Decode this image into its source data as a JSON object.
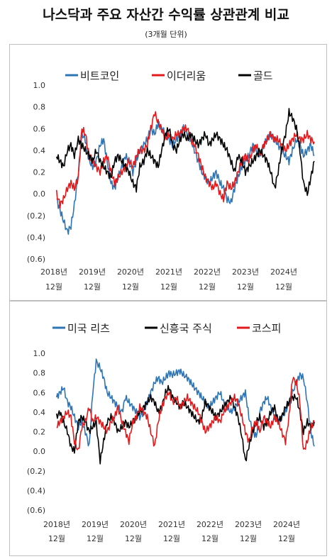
{
  "header": {
    "title": "나스닥과 주요 자산간 수익률 상관관계 비교",
    "subtitle": "(3개월 단위)"
  },
  "chart_data": [
    {
      "type": "line",
      "title": "",
      "legend_position": "top",
      "ylim": [
        -0.6,
        1.0
      ],
      "yticks": [
        "1.0",
        "0.8",
        "0.6",
        "0.4",
        "0.2",
        "0.0",
        "(0.2)",
        "(0.4)",
        "(0.6)"
      ],
      "xticks": [
        {
          "year": "2018년",
          "month": "12월"
        },
        {
          "year": "2019년",
          "month": "12월"
        },
        {
          "year": "2020년",
          "month": "12월"
        },
        {
          "year": "2021년",
          "month": "12월"
        },
        {
          "year": "2022년",
          "month": "12월"
        },
        {
          "year": "2023년",
          "month": "12월"
        },
        {
          "year": "2024년",
          "month": "12월"
        }
      ],
      "x": [
        2018.92,
        2019.0,
        2019.08,
        2019.17,
        2019.25,
        2019.33,
        2019.42,
        2019.5,
        2019.58,
        2019.67,
        2019.75,
        2019.83,
        2019.92,
        2020.0,
        2020.08,
        2020.17,
        2020.25,
        2020.33,
        2020.42,
        2020.5,
        2020.58,
        2020.67,
        2020.75,
        2020.83,
        2020.92,
        2021.0,
        2021.08,
        2021.17,
        2021.25,
        2021.33,
        2021.42,
        2021.5,
        2021.58,
        2021.67,
        2021.75,
        2021.83,
        2021.92,
        2022.0,
        2022.08,
        2022.17,
        2022.25,
        2022.33,
        2022.42,
        2022.5,
        2022.58,
        2022.67,
        2022.75,
        2022.83,
        2022.92,
        2023.0,
        2023.08,
        2023.17,
        2023.25,
        2023.33,
        2023.42,
        2023.5,
        2023.58,
        2023.67,
        2023.75,
        2023.83,
        2023.92,
        2024.0,
        2024.08,
        2024.17,
        2024.25,
        2024.33,
        2024.42,
        2024.5,
        2024.58,
        2024.67,
        2024.75,
        2024.83
      ],
      "series": [
        {
          "name": "비트코인",
          "color": "#2e75b6",
          "values": [
            -0.05,
            -0.15,
            -0.25,
            -0.35,
            -0.3,
            -0.1,
            0.2,
            0.55,
            0.5,
            0.3,
            0.25,
            0.3,
            0.45,
            0.5,
            0.3,
            0.1,
            0.05,
            0.15,
            0.25,
            0.35,
            0.3,
            0.2,
            0.3,
            0.4,
            0.45,
            0.5,
            0.6,
            0.55,
            0.65,
            0.6,
            0.55,
            0.5,
            0.45,
            0.5,
            0.55,
            0.6,
            0.55,
            0.5,
            0.4,
            0.3,
            0.2,
            0.15,
            0.1,
            0.15,
            0.2,
            0.1,
            0.05,
            -0.05,
            -0.08,
            0.05,
            0.15,
            0.25,
            0.3,
            0.35,
            0.45,
            0.4,
            0.35,
            0.45,
            0.5,
            0.55,
            0.5,
            0.45,
            0.4,
            0.35,
            0.3,
            0.4,
            0.5,
            0.45,
            0.35,
            0.4,
            0.45,
            0.35
          ]
        },
        {
          "name": "이더리움",
          "color": "#e31a1c",
          "values": [
            0.0,
            -0.1,
            -0.05,
            0.05,
            0.1,
            0.05,
            0.15,
            0.6,
            0.55,
            0.35,
            0.3,
            0.25,
            0.2,
            0.3,
            0.35,
            0.2,
            0.1,
            0.15,
            0.2,
            0.25,
            0.3,
            0.25,
            0.35,
            0.4,
            0.4,
            0.45,
            0.6,
            0.75,
            0.65,
            0.6,
            0.5,
            0.55,
            0.5,
            0.55,
            0.55,
            0.6,
            0.6,
            0.5,
            0.45,
            0.35,
            0.25,
            0.15,
            0.1,
            0.05,
            0.1,
            0.0,
            -0.05,
            0.1,
            0.05,
            0.1,
            0.2,
            0.3,
            0.35,
            0.3,
            0.4,
            0.45,
            0.35,
            0.45,
            0.5,
            0.55,
            0.5,
            0.5,
            0.45,
            0.4,
            0.45,
            0.5,
            0.55,
            0.5,
            0.5,
            0.55,
            0.5,
            0.48
          ]
        },
        {
          "name": "골드",
          "color": "#000000",
          "values": [
            0.35,
            0.3,
            0.25,
            0.4,
            0.45,
            0.35,
            0.5,
            0.45,
            0.4,
            0.35,
            0.3,
            0.4,
            0.3,
            0.25,
            0.2,
            0.15,
            0.3,
            0.35,
            0.3,
            0.25,
            0.2,
            0.1,
            0.05,
            0.25,
            0.3,
            0.4,
            0.35,
            0.3,
            0.25,
            0.4,
            0.55,
            0.6,
            0.45,
            0.4,
            0.5,
            0.55,
            0.5,
            0.55,
            0.5,
            0.45,
            0.5,
            0.55,
            0.45,
            0.5,
            0.55,
            0.5,
            0.45,
            0.4,
            0.3,
            0.2,
            0.35,
            0.3,
            0.2,
            0.25,
            0.3,
            0.35,
            0.4,
            0.35,
            0.3,
            0.2,
            0.05,
            0.2,
            0.4,
            0.55,
            0.75,
            0.7,
            0.6,
            0.4,
            0.1,
            0.0,
            0.15,
            0.3
          ]
        }
      ]
    },
    {
      "type": "line",
      "title": "",
      "legend_position": "top",
      "ylim": [
        -0.6,
        1.0
      ],
      "yticks": [
        "1.0",
        "0.8",
        "0.6",
        "0.4",
        "0.2",
        "0.0",
        "(0.2)",
        "(0.4)",
        "(0.6)"
      ],
      "xticks": [
        {
          "year": "2018년",
          "month": "12월"
        },
        {
          "year": "2019년",
          "month": "12월"
        },
        {
          "year": "2020년",
          "month": "12월"
        },
        {
          "year": "2021년",
          "month": "12월"
        },
        {
          "year": "2022년",
          "month": "12월"
        },
        {
          "year": "2023년",
          "month": "12월"
        },
        {
          "year": "2024년",
          "month": "12월"
        }
      ],
      "x": [
        2018.92,
        2019.0,
        2019.08,
        2019.17,
        2019.25,
        2019.33,
        2019.42,
        2019.5,
        2019.58,
        2019.67,
        2019.75,
        2019.83,
        2019.92,
        2020.0,
        2020.08,
        2020.17,
        2020.25,
        2020.33,
        2020.42,
        2020.5,
        2020.58,
        2020.67,
        2020.75,
        2020.83,
        2020.92,
        2021.0,
        2021.08,
        2021.17,
        2021.25,
        2021.33,
        2021.42,
        2021.5,
        2021.58,
        2021.67,
        2021.75,
        2021.83,
        2021.92,
        2022.0,
        2022.08,
        2022.17,
        2022.25,
        2022.33,
        2022.42,
        2022.5,
        2022.58,
        2022.67,
        2022.75,
        2022.83,
        2022.92,
        2023.0,
        2023.08,
        2023.17,
        2023.25,
        2023.33,
        2023.42,
        2023.5,
        2023.58,
        2023.67,
        2023.75,
        2023.83,
        2023.92,
        2024.0,
        2024.08,
        2024.17,
        2024.25,
        2024.33,
        2024.42,
        2024.5,
        2024.58,
        2024.67,
        2024.75,
        2024.83
      ],
      "series": [
        {
          "name": "미국 리츠",
          "color": "#2e75b6",
          "values": [
            0.55,
            0.6,
            0.65,
            0.5,
            0.45,
            0.35,
            0.25,
            0.3,
            0.2,
            0.05,
            0.6,
            0.92,
            0.85,
            0.75,
            0.6,
            0.55,
            0.5,
            0.45,
            0.4,
            0.55,
            0.5,
            0.45,
            0.4,
            0.35,
            0.4,
            0.5,
            0.6,
            0.7,
            0.75,
            0.7,
            0.75,
            0.8,
            0.78,
            0.8,
            0.82,
            0.78,
            0.75,
            0.7,
            0.65,
            0.6,
            0.55,
            0.5,
            0.45,
            0.5,
            0.55,
            0.6,
            0.5,
            0.45,
            0.4,
            0.45,
            0.5,
            0.55,
            0.6,
            0.35,
            0.2,
            0.15,
            0.4,
            0.5,
            0.55,
            0.45,
            0.35,
            0.3,
            0.35,
            0.4,
            0.5,
            0.6,
            0.7,
            0.78,
            0.75,
            0.5,
            0.2,
            0.05
          ]
        },
        {
          "name": "신흥국 주식",
          "color": "#000000",
          "values": [
            0.35,
            0.4,
            0.3,
            0.2,
            0.05,
            0.0,
            0.3,
            0.35,
            0.3,
            0.2,
            0.25,
            0.3,
            -0.1,
            0.1,
            0.3,
            0.35,
            0.3,
            0.2,
            0.25,
            0.3,
            0.25,
            0.3,
            0.35,
            0.4,
            0.45,
            0.5,
            0.55,
            0.5,
            0.4,
            0.45,
            0.6,
            0.65,
            0.55,
            0.5,
            0.45,
            0.5,
            0.45,
            0.4,
            0.35,
            0.3,
            0.35,
            0.5,
            0.45,
            0.4,
            0.35,
            0.4,
            0.45,
            0.5,
            0.55,
            0.45,
            0.35,
            0.15,
            -0.1,
            0.05,
            0.2,
            0.3,
            0.35,
            0.25,
            0.3,
            0.4,
            0.45,
            0.3,
            0.35,
            0.45,
            0.5,
            0.55,
            0.55,
            0.4,
            0.2,
            0.3,
            0.25,
            0.3
          ]
        },
        {
          "name": "코스피",
          "color": "#e31a1c",
          "values": [
            0.25,
            0.3,
            0.35,
            0.4,
            0.35,
            0.1,
            0.0,
            0.25,
            0.3,
            0.45,
            0.3,
            0.35,
            0.3,
            0.25,
            0.2,
            0.3,
            0.35,
            0.45,
            0.3,
            0.2,
            0.1,
            0.3,
            0.35,
            0.45,
            0.4,
            0.35,
            0.2,
            0.05,
            0.3,
            0.45,
            0.55,
            0.6,
            0.5,
            0.55,
            0.45,
            0.5,
            0.55,
            0.5,
            0.45,
            0.4,
            0.3,
            0.2,
            0.25,
            0.3,
            0.35,
            0.3,
            0.4,
            0.45,
            0.5,
            0.55,
            0.5,
            0.35,
            0.2,
            0.1,
            0.25,
            0.3,
            0.2,
            0.35,
            0.3,
            0.25,
            0.35,
            0.3,
            0.2,
            0.1,
            0.35,
            0.75,
            0.7,
            0.5,
            0.0,
            0.1,
            0.25,
            0.3
          ]
        }
      ]
    }
  ]
}
